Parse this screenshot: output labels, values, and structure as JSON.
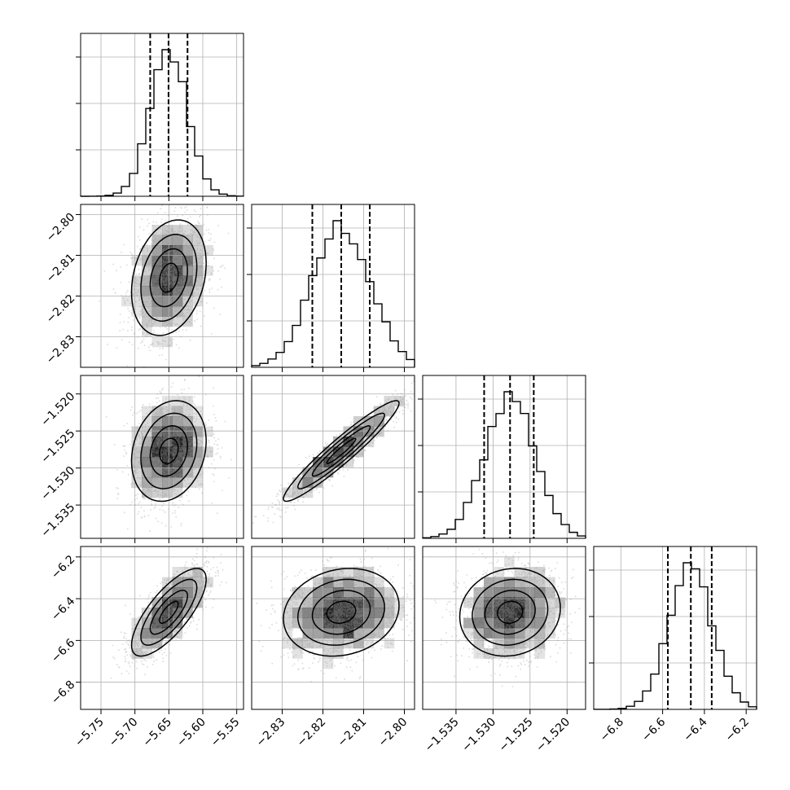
{
  "chart_data": {
    "type": "corner",
    "parameters": [
      {
        "range": [
          -5.78,
          -5.54
        ],
        "ticks": [
          "−5.75",
          "−5.70",
          "−5.65",
          "−5.60",
          "−5.55"
        ],
        "tick_values": [
          -5.75,
          -5.7,
          -5.65,
          -5.6,
          -5.55
        ],
        "quantiles": [
          -5.6775,
          -5.6505,
          -5.6225
        ],
        "mean": -5.65,
        "sd": 0.0275
      },
      {
        "range": [
          -2.8375,
          -2.7975
        ],
        "ticks": [
          "−2.83",
          "−2.82",
          "−2.81",
          "−2.80"
        ],
        "tick_values": [
          -2.83,
          -2.82,
          -2.81,
          -2.8
        ],
        "quantiles": [
          -2.8226,
          -2.8155,
          -2.8085
        ],
        "mean": -2.8155,
        "sd": 0.0071
      },
      {
        "range": [
          -1.5395,
          -1.5175
        ],
        "ticks": [
          "−1.535",
          "−1.530",
          "−1.525",
          "−1.520"
        ],
        "tick_values": [
          -1.535,
          -1.53,
          -1.525,
          -1.52
        ],
        "quantiles": [
          -1.5312,
          -1.5277,
          -1.5245
        ],
        "mean": -1.5277,
        "sd": 0.0034
      },
      {
        "range": [
          -6.93,
          -6.15
        ],
        "ticks": [
          "−6.8",
          "−6.6",
          "−6.4",
          "−6.2"
        ],
        "tick_values": [
          -6.8,
          -6.6,
          -6.4,
          -6.2
        ],
        "quantiles": [
          -6.575,
          -6.465,
          -6.365
        ],
        "mean": -6.465,
        "sd": 0.105
      }
    ],
    "correlations": [
      [
        1,
        0.25,
        0.2,
        0.75
      ],
      [
        0.25,
        1,
        0.95,
        0.15
      ],
      [
        0.2,
        0.95,
        1,
        0.1
      ],
      [
        0.75,
        0.15,
        0.1,
        1
      ]
    ],
    "histogram_bins": 20,
    "quantile_line_style": "dashed",
    "grid": true,
    "contour_levels": [
      0.5,
      1.0,
      1.5,
      2.0
    ],
    "colors": {
      "line": "#000000",
      "scatter": "#999999",
      "grid": "#b0b0b0",
      "density": "#000000"
    }
  }
}
